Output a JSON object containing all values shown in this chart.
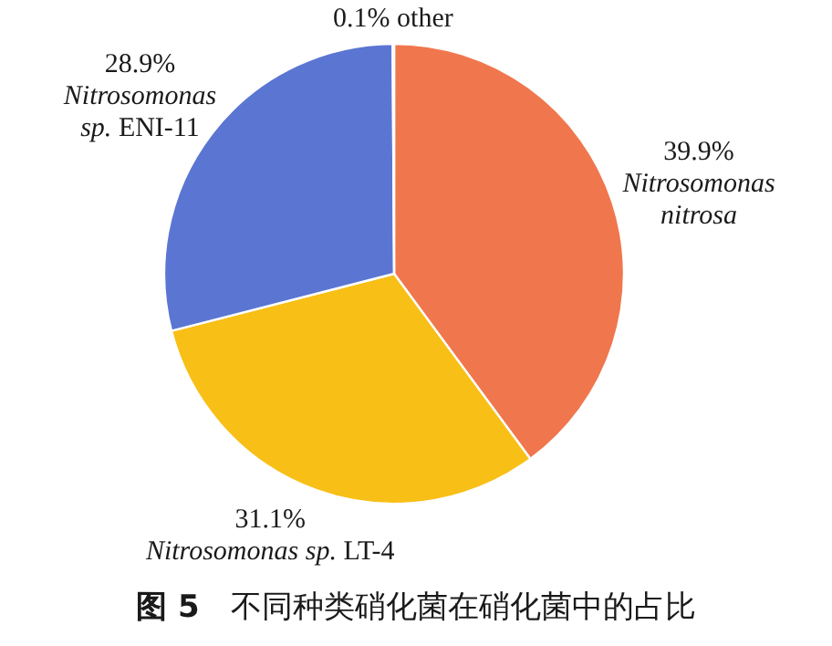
{
  "chart_data": {
    "type": "pie",
    "title": "**图 5**　不同种类硝化菌在硝化菌中的占比",
    "categories": [
      "*Nitrosomonas nitrosa*",
      "*Nitrosomonas sp.* LT-4",
      "*Nitrosomonas sp.* ENI-11",
      "other"
    ],
    "values": [
      39.9,
      31.1,
      28.9,
      0.1
    ],
    "value_labels": [
      "39.9%",
      "31.1%",
      "28.9%",
      "0.1%"
    ],
    "colors": [
      "#f0774d",
      "#f8bf17",
      "#5b76d2",
      "#b0b0b0"
    ]
  }
}
